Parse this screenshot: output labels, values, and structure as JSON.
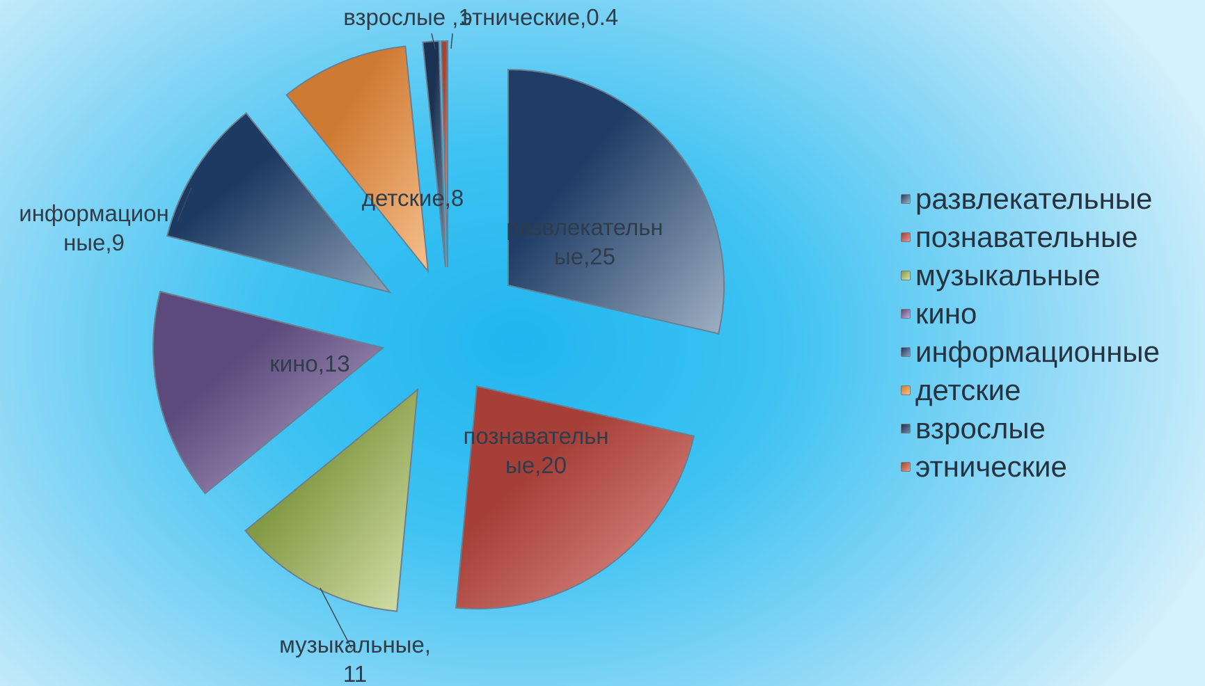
{
  "chart_data": {
    "type": "pie",
    "exploded": true,
    "title": "",
    "legend_position": "right",
    "slices": [
      {
        "name": "развлекательные",
        "value": 25,
        "label": [
          "развлекательн",
          "ые,25"
        ],
        "color": "#1f3d66",
        "light": "#9fb0c3"
      },
      {
        "name": "познавательные",
        "value": 20,
        "label": [
          "познавательн",
          "ые,20"
        ],
        "color": "#a53f38",
        "light": "#e49590"
      },
      {
        "name": "музыкальные",
        "value": 11,
        "label": [
          "музыкальные,",
          "11"
        ],
        "color": "#829a44",
        "light": "#d8e2ad"
      },
      {
        "name": "кино",
        "value": 13,
        "label": [
          "кино,13"
        ],
        "color": "#5c4a7c",
        "light": "#bdaed2"
      },
      {
        "name": "информационные",
        "value": 9,
        "label": [
          "информацион",
          "ные,9"
        ],
        "color": "#1d3a62",
        "light": "#8b9fb5"
      },
      {
        "name": "детские",
        "value": 8,
        "label": [
          "детские,8"
        ],
        "color": "#cf7a32",
        "light": "#f6c08c"
      },
      {
        "name": "взрослые",
        "value": 1,
        "label": [
          "взрослые ,1"
        ],
        "color": "#1a3152",
        "light": "#7588a0"
      },
      {
        "name": "этнические",
        "value": 0.4,
        "label": [
          "этнические,0.4"
        ],
        "color": "#a84532",
        "light": "#e39a86"
      }
    ]
  }
}
